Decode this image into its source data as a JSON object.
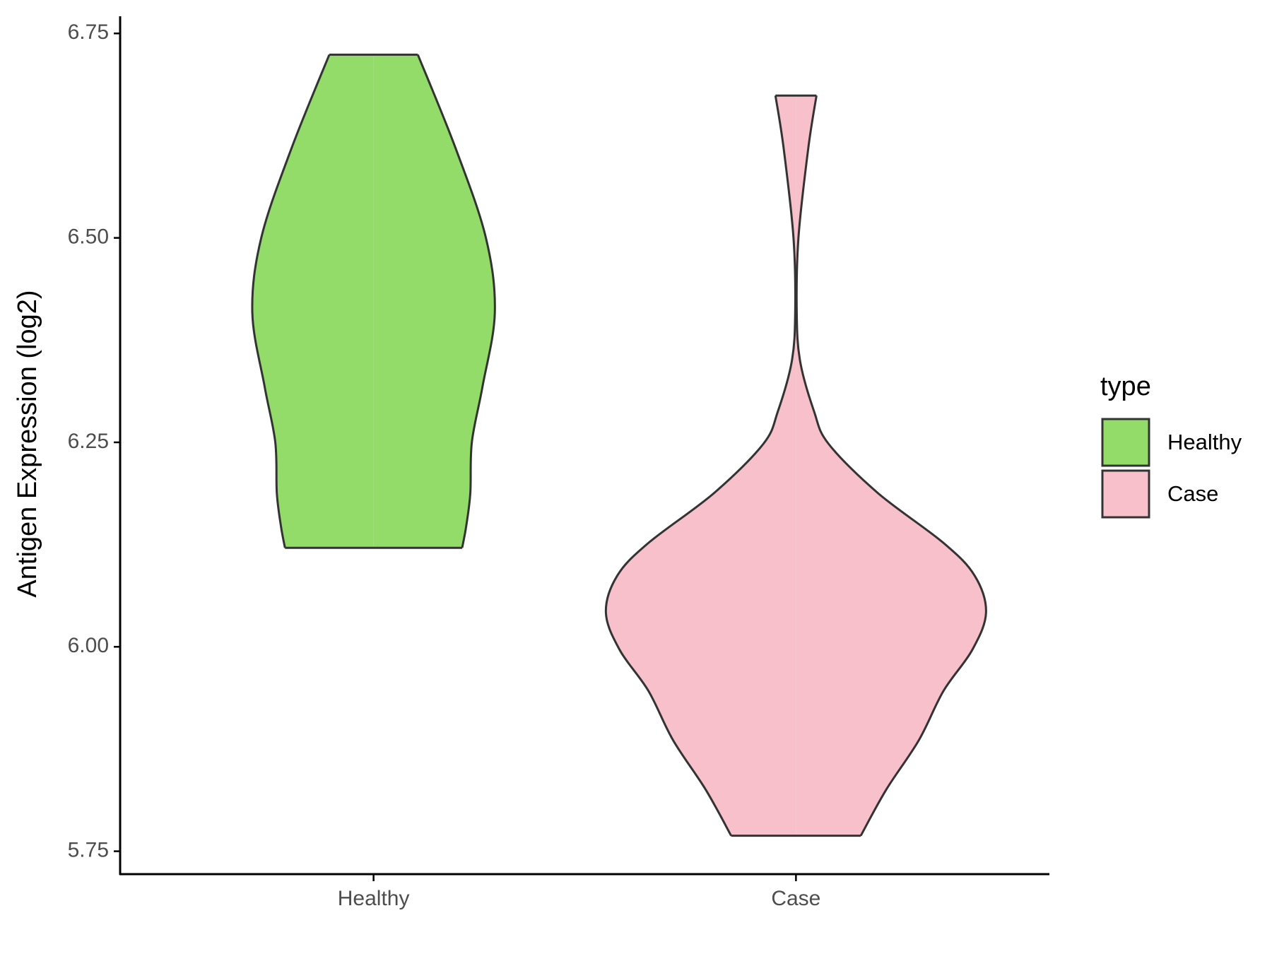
{
  "chart_data": {
    "type": "violin",
    "y_label": "Antigen Expression (log2)",
    "categories": [
      "Healthy",
      "Case"
    ],
    "ylim": [
      5.722,
      6.771
    ],
    "yticks": [
      5.75,
      {
        "value": 6,
        "label": "6.00"
      },
      6.25,
      {
        "value": 6.5,
        "label": "6.50"
      },
      6.75
    ],
    "legend_title": "type",
    "legend_position": "right",
    "series": [
      {
        "name": "Healthy",
        "color": "#93dc6a",
        "y": [
          6.724,
          6.61,
          6.5,
          6.409,
          6.318,
          6.25,
          6.188,
          6.147,
          6.121
        ],
        "width": [
          0.233,
          0.431,
          0.591,
          0.638,
          0.573,
          0.517,
          0.509,
          0.487,
          0.466
        ]
      },
      {
        "name": "Case",
        "color": "#f8c0cb",
        "y": [
          6.674,
          6.61,
          6.5,
          6.409,
          6.349,
          6.288,
          6.248,
          6.188,
          6.127,
          6.087,
          6.042,
          5.996,
          5.946,
          5.886,
          5.825,
          5.769
        ],
        "width": [
          0.108,
          0.065,
          0.013,
          0.004,
          0.022,
          0.095,
          0.172,
          0.431,
          0.776,
          0.94,
          1,
          0.927,
          0.776,
          0.647,
          0.474,
          0.341
        ]
      }
    ]
  }
}
